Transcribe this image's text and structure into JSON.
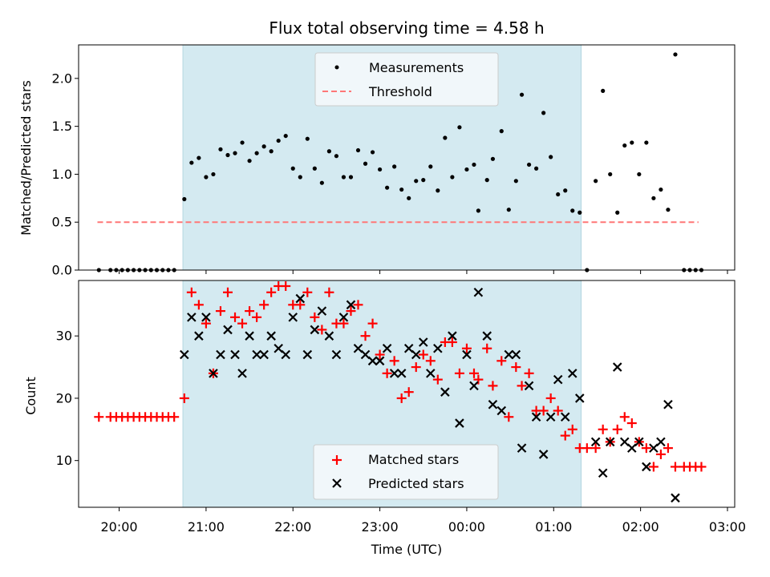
{
  "chart_data": {
    "type": "scatter",
    "title": "Flux total observing time = 4.58 h",
    "xlabel": "Time (UTC)",
    "x_tick_labels": [
      "20:00",
      "21:00",
      "22:00",
      "23:00",
      "00:00",
      "01:00",
      "02:00",
      "03:00"
    ],
    "x_range": [
      "19:32",
      "03:05"
    ],
    "observing_window": {
      "start": "20:44",
      "end": "01:19",
      "color": "#d4eaf1"
    },
    "top_panel": {
      "ylabel": "Matched/Predicted stars",
      "ylim": [
        0,
        2.35
      ],
      "y_ticks": [
        "0.0",
        "0.5",
        "1.0",
        "1.5",
        "2.0"
      ],
      "y_tick_values": [
        0,
        0.5,
        1.0,
        1.5,
        2.0
      ],
      "legend": {
        "position": "top-center",
        "measurements_label": "Measurements",
        "threshold_label": "Threshold"
      },
      "threshold": {
        "value": 0.5,
        "x_start": "19:45",
        "x_end": "02:40",
        "color": "#ff7777"
      },
      "measurements": [
        {
          "x": "19:46",
          "y": 0
        },
        {
          "x": "19:54",
          "y": 0
        },
        {
          "x": "19:58",
          "y": 0
        },
        {
          "x": "20:02",
          "y": 0
        },
        {
          "x": "20:06",
          "y": 0
        },
        {
          "x": "20:10",
          "y": 0
        },
        {
          "x": "20:14",
          "y": 0
        },
        {
          "x": "20:18",
          "y": 0
        },
        {
          "x": "20:22",
          "y": 0
        },
        {
          "x": "20:26",
          "y": 0
        },
        {
          "x": "20:30",
          "y": 0
        },
        {
          "x": "20:34",
          "y": 0
        },
        {
          "x": "20:38",
          "y": 0
        },
        {
          "x": "20:45",
          "y": 0.74
        },
        {
          "x": "20:50",
          "y": 1.12
        },
        {
          "x": "20:55",
          "y": 1.17
        },
        {
          "x": "21:00",
          "y": 0.97
        },
        {
          "x": "21:05",
          "y": 1.0
        },
        {
          "x": "21:10",
          "y": 1.26
        },
        {
          "x": "21:15",
          "y": 1.2
        },
        {
          "x": "21:20",
          "y": 1.22
        },
        {
          "x": "21:25",
          "y": 1.33
        },
        {
          "x": "21:30",
          "y": 1.14
        },
        {
          "x": "21:35",
          "y": 1.22
        },
        {
          "x": "21:40",
          "y": 1.29
        },
        {
          "x": "21:45",
          "y": 1.24
        },
        {
          "x": "21:50",
          "y": 1.35
        },
        {
          "x": "21:55",
          "y": 1.4
        },
        {
          "x": "22:00",
          "y": 1.06
        },
        {
          "x": "22:05",
          "y": 0.97
        },
        {
          "x": "22:10",
          "y": 1.37
        },
        {
          "x": "22:15",
          "y": 1.06
        },
        {
          "x": "22:20",
          "y": 0.91
        },
        {
          "x": "22:25",
          "y": 1.24
        },
        {
          "x": "22:30",
          "y": 1.19
        },
        {
          "x": "22:35",
          "y": 0.97
        },
        {
          "x": "22:40",
          "y": 0.97
        },
        {
          "x": "22:45",
          "y": 1.25
        },
        {
          "x": "22:50",
          "y": 1.11
        },
        {
          "x": "22:55",
          "y": 1.23
        },
        {
          "x": "23:00",
          "y": 1.05
        },
        {
          "x": "23:05",
          "y": 0.86
        },
        {
          "x": "23:10",
          "y": 1.08
        },
        {
          "x": "23:15",
          "y": 0.84
        },
        {
          "x": "23:20",
          "y": 0.75
        },
        {
          "x": "23:25",
          "y": 0.93
        },
        {
          "x": "23:30",
          "y": 0.94
        },
        {
          "x": "23:35",
          "y": 1.08
        },
        {
          "x": "23:40",
          "y": 0.83
        },
        {
          "x": "23:45",
          "y": 1.38
        },
        {
          "x": "23:50",
          "y": 0.97
        },
        {
          "x": "23:55",
          "y": 1.49
        },
        {
          "x": "00:00",
          "y": 1.05
        },
        {
          "x": "00:05",
          "y": 1.1
        },
        {
          "x": "00:08",
          "y": 0.62
        },
        {
          "x": "00:14",
          "y": 0.94
        },
        {
          "x": "00:18",
          "y": 1.16
        },
        {
          "x": "00:24",
          "y": 1.45
        },
        {
          "x": "00:29",
          "y": 0.63
        },
        {
          "x": "00:34",
          "y": 0.93
        },
        {
          "x": "00:38",
          "y": 1.83
        },
        {
          "x": "00:43",
          "y": 1.1
        },
        {
          "x": "00:48",
          "y": 1.06
        },
        {
          "x": "00:53",
          "y": 1.64
        },
        {
          "x": "00:58",
          "y": 1.18
        },
        {
          "x": "01:03",
          "y": 0.79
        },
        {
          "x": "01:08",
          "y": 0.83
        },
        {
          "x": "01:13",
          "y": 0.62
        },
        {
          "x": "01:18",
          "y": 0.6
        },
        {
          "x": "01:23",
          "y": 0
        },
        {
          "x": "01:29",
          "y": 0.93
        },
        {
          "x": "01:34",
          "y": 1.87
        },
        {
          "x": "01:39",
          "y": 1.0
        },
        {
          "x": "01:44",
          "y": 0.6
        },
        {
          "x": "01:49",
          "y": 1.3
        },
        {
          "x": "01:54",
          "y": 1.33
        },
        {
          "x": "01:59",
          "y": 1.0
        },
        {
          "x": "02:04",
          "y": 1.33
        },
        {
          "x": "02:09",
          "y": 0.75
        },
        {
          "x": "02:14",
          "y": 0.84
        },
        {
          "x": "02:19",
          "y": 0.63
        },
        {
          "x": "02:24",
          "y": 2.25
        },
        {
          "x": "02:30",
          "y": 0
        },
        {
          "x": "02:34",
          "y": 0
        },
        {
          "x": "02:38",
          "y": 0
        },
        {
          "x": "02:42",
          "y": 0
        }
      ]
    },
    "bottom_panel": {
      "ylabel": "Count",
      "ylim": [
        2.5,
        38.9
      ],
      "y_ticks": [
        "10",
        "20",
        "30"
      ],
      "y_tick_values": [
        10,
        20,
        30
      ],
      "legend": {
        "position": "bottom-center",
        "matched_label": "Matched stars",
        "predicted_label": "Predicted stars"
      },
      "matched": [
        {
          "x": "19:46",
          "y": 17
        },
        {
          "x": "19:54",
          "y": 17
        },
        {
          "x": "19:58",
          "y": 17
        },
        {
          "x": "20:02",
          "y": 17
        },
        {
          "x": "20:06",
          "y": 17
        },
        {
          "x": "20:10",
          "y": 17
        },
        {
          "x": "20:14",
          "y": 17
        },
        {
          "x": "20:18",
          "y": 17
        },
        {
          "x": "20:22",
          "y": 17
        },
        {
          "x": "20:26",
          "y": 17
        },
        {
          "x": "20:30",
          "y": 17
        },
        {
          "x": "20:34",
          "y": 17
        },
        {
          "x": "20:38",
          "y": 17
        },
        {
          "x": "20:45",
          "y": 20
        },
        {
          "x": "20:50",
          "y": 37
        },
        {
          "x": "20:55",
          "y": 35
        },
        {
          "x": "21:00",
          "y": 32
        },
        {
          "x": "21:05",
          "y": 24
        },
        {
          "x": "21:10",
          "y": 34
        },
        {
          "x": "21:15",
          "y": 37
        },
        {
          "x": "21:20",
          "y": 33
        },
        {
          "x": "21:25",
          "y": 32
        },
        {
          "x": "21:30",
          "y": 34
        },
        {
          "x": "21:35",
          "y": 33
        },
        {
          "x": "21:40",
          "y": 35
        },
        {
          "x": "21:45",
          "y": 37
        },
        {
          "x": "21:50",
          "y": 38
        },
        {
          "x": "21:55",
          "y": 38
        },
        {
          "x": "22:00",
          "y": 35
        },
        {
          "x": "22:05",
          "y": 35
        },
        {
          "x": "22:10",
          "y": 37
        },
        {
          "x": "22:15",
          "y": 33
        },
        {
          "x": "22:20",
          "y": 31
        },
        {
          "x": "22:25",
          "y": 37
        },
        {
          "x": "22:30",
          "y": 32
        },
        {
          "x": "22:35",
          "y": 32
        },
        {
          "x": "22:40",
          "y": 34
        },
        {
          "x": "22:45",
          "y": 35
        },
        {
          "x": "22:50",
          "y": 30
        },
        {
          "x": "22:55",
          "y": 32
        },
        {
          "x": "23:00",
          "y": 27
        },
        {
          "x": "23:05",
          "y": 24
        },
        {
          "x": "23:10",
          "y": 26
        },
        {
          "x": "23:15",
          "y": 20
        },
        {
          "x": "23:20",
          "y": 21
        },
        {
          "x": "23:25",
          "y": 25
        },
        {
          "x": "23:30",
          "y": 27
        },
        {
          "x": "23:35",
          "y": 26
        },
        {
          "x": "23:40",
          "y": 23
        },
        {
          "x": "23:45",
          "y": 29
        },
        {
          "x": "23:50",
          "y": 29
        },
        {
          "x": "23:55",
          "y": 24
        },
        {
          "x": "00:00",
          "y": 28
        },
        {
          "x": "00:05",
          "y": 24
        },
        {
          "x": "00:08",
          "y": 23
        },
        {
          "x": "00:14",
          "y": 28
        },
        {
          "x": "00:18",
          "y": 22
        },
        {
          "x": "00:24",
          "y": 26
        },
        {
          "x": "00:29",
          "y": 17
        },
        {
          "x": "00:34",
          "y": 25
        },
        {
          "x": "00:38",
          "y": 22
        },
        {
          "x": "00:43",
          "y": 24
        },
        {
          "x": "00:48",
          "y": 18
        },
        {
          "x": "00:53",
          "y": 18
        },
        {
          "x": "00:58",
          "y": 20
        },
        {
          "x": "01:03",
          "y": 18
        },
        {
          "x": "01:08",
          "y": 14
        },
        {
          "x": "01:13",
          "y": 15
        },
        {
          "x": "01:18",
          "y": 12
        },
        {
          "x": "01:23",
          "y": 12
        },
        {
          "x": "01:29",
          "y": 12
        },
        {
          "x": "01:34",
          "y": 15
        },
        {
          "x": "01:39",
          "y": 13
        },
        {
          "x": "01:44",
          "y": 15
        },
        {
          "x": "01:49",
          "y": 17
        },
        {
          "x": "01:54",
          "y": 16
        },
        {
          "x": "01:59",
          "y": 13
        },
        {
          "x": "02:04",
          "y": 12
        },
        {
          "x": "02:09",
          "y": 9
        },
        {
          "x": "02:14",
          "y": 11
        },
        {
          "x": "02:19",
          "y": 12
        },
        {
          "x": "02:24",
          "y": 9
        },
        {
          "x": "02:30",
          "y": 9
        },
        {
          "x": "02:34",
          "y": 9
        },
        {
          "x": "02:38",
          "y": 9
        },
        {
          "x": "02:42",
          "y": 9
        }
      ],
      "predicted": [
        {
          "x": "20:45",
          "y": 27
        },
        {
          "x": "20:50",
          "y": 33
        },
        {
          "x": "20:55",
          "y": 30
        },
        {
          "x": "21:00",
          "y": 33
        },
        {
          "x": "21:05",
          "y": 24
        },
        {
          "x": "21:10",
          "y": 27
        },
        {
          "x": "21:15",
          "y": 31
        },
        {
          "x": "21:20",
          "y": 27
        },
        {
          "x": "21:25",
          "y": 24
        },
        {
          "x": "21:30",
          "y": 30
        },
        {
          "x": "21:35",
          "y": 27
        },
        {
          "x": "21:40",
          "y": 27
        },
        {
          "x": "21:45",
          "y": 30
        },
        {
          "x": "21:50",
          "y": 28
        },
        {
          "x": "21:55",
          "y": 27
        },
        {
          "x": "22:00",
          "y": 33
        },
        {
          "x": "22:05",
          "y": 36
        },
        {
          "x": "22:10",
          "y": 27
        },
        {
          "x": "22:15",
          "y": 31
        },
        {
          "x": "22:20",
          "y": 34
        },
        {
          "x": "22:25",
          "y": 30
        },
        {
          "x": "22:30",
          "y": 27
        },
        {
          "x": "22:35",
          "y": 33
        },
        {
          "x": "22:40",
          "y": 35
        },
        {
          "x": "22:45",
          "y": 28
        },
        {
          "x": "22:50",
          "y": 27
        },
        {
          "x": "22:55",
          "y": 26
        },
        {
          "x": "23:00",
          "y": 26
        },
        {
          "x": "23:05",
          "y": 28
        },
        {
          "x": "23:10",
          "y": 24
        },
        {
          "x": "23:15",
          "y": 24
        },
        {
          "x": "23:20",
          "y": 28
        },
        {
          "x": "23:25",
          "y": 27
        },
        {
          "x": "23:30",
          "y": 29
        },
        {
          "x": "23:35",
          "y": 24
        },
        {
          "x": "23:40",
          "y": 28
        },
        {
          "x": "23:45",
          "y": 21
        },
        {
          "x": "23:50",
          "y": 30
        },
        {
          "x": "23:55",
          "y": 16
        },
        {
          "x": "00:00",
          "y": 27
        },
        {
          "x": "00:05",
          "y": 22
        },
        {
          "x": "00:08",
          "y": 37
        },
        {
          "x": "00:14",
          "y": 30
        },
        {
          "x": "00:18",
          "y": 19
        },
        {
          "x": "00:24",
          "y": 18
        },
        {
          "x": "00:29",
          "y": 27
        },
        {
          "x": "00:34",
          "y": 27
        },
        {
          "x": "00:38",
          "y": 12
        },
        {
          "x": "00:43",
          "y": 22
        },
        {
          "x": "00:48",
          "y": 17
        },
        {
          "x": "00:53",
          "y": 11
        },
        {
          "x": "00:58",
          "y": 17
        },
        {
          "x": "01:03",
          "y": 23
        },
        {
          "x": "01:08",
          "y": 17
        },
        {
          "x": "01:13",
          "y": 24
        },
        {
          "x": "01:18",
          "y": 20
        },
        {
          "x": "01:29",
          "y": 13
        },
        {
          "x": "01:34",
          "y": 8
        },
        {
          "x": "01:39",
          "y": 13
        },
        {
          "x": "01:44",
          "y": 25
        },
        {
          "x": "01:49",
          "y": 13
        },
        {
          "x": "01:54",
          "y": 12
        },
        {
          "x": "01:59",
          "y": 13
        },
        {
          "x": "02:04",
          "y": 9
        },
        {
          "x": "02:09",
          "y": 12
        },
        {
          "x": "02:14",
          "y": 13
        },
        {
          "x": "02:19",
          "y": 19
        },
        {
          "x": "02:24",
          "y": 4
        }
      ]
    },
    "colors": {
      "measurements": "#000000",
      "matched": "#ff0000",
      "predicted": "#000000",
      "shade": "#d4eaf1",
      "threshold": "#ff7777"
    }
  }
}
